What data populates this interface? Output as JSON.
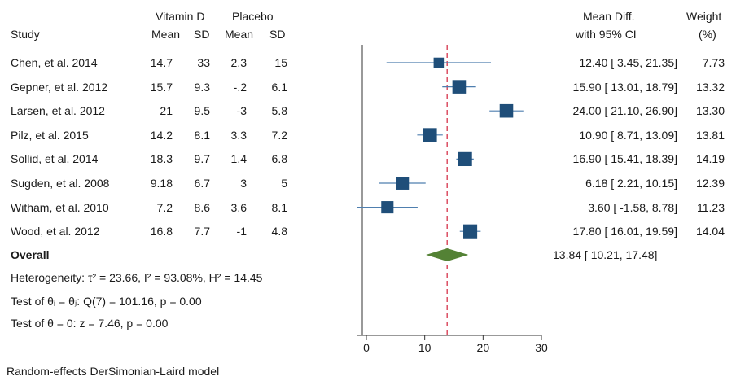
{
  "header": {
    "group1": "Vitamin D",
    "group2": "Placebo",
    "study": "Study",
    "mean": "Mean",
    "sd": "SD",
    "effect_line1": "Mean Diff.",
    "effect_line2": "with 95% CI",
    "weight_line1": "Weight",
    "weight_line2": "(%)"
  },
  "overall": {
    "label": "Overall",
    "ci_text": "13.84 [ 10.21,  17.48]"
  },
  "stats": {
    "heterogeneity": "Heterogeneity: τ² = 23.66, I² = 93.08%, H² = 14.45",
    "test_equal": "Test of θᵢ = θⱼ: Q(7) = 101.16, p = 0.00",
    "test_zero": "Test of θ = 0: z = 7.46, p = 0.00"
  },
  "footer": {
    "model": "Random-effects DerSimonian-Laird model"
  },
  "colors": {
    "square": "#1f4e79",
    "ci_line": "#4f7faf",
    "diamond": "#548235",
    "ref_line": "#d6334a"
  },
  "chart_data": {
    "type": "forest",
    "xlim": [
      -1.58,
      30
    ],
    "xticks": [
      "0",
      "10",
      "20",
      "30"
    ],
    "xtick_values": [
      0,
      10,
      20,
      30
    ],
    "reference_line": 13.84,
    "overall": {
      "estimate": 13.84,
      "lower": 10.21,
      "upper": 17.48
    },
    "studies": [
      {
        "name": "Chen, et al. 2014",
        "vd_mean": "14.7",
        "vd_sd": "33",
        "pl_mean": "2.3",
        "pl_sd": "15",
        "md": 12.4,
        "lower": 3.45,
        "upper": 21.35,
        "weight": 7.73,
        "ci_text": "12.40 [   3.45,  21.35]",
        "weight_text": "7.73"
      },
      {
        "name": "Gepner, et al. 2012",
        "vd_mean": "15.7",
        "vd_sd": "9.3",
        "pl_mean": "-.2",
        "pl_sd": "6.1",
        "md": 15.9,
        "lower": 13.01,
        "upper": 18.79,
        "weight": 13.32,
        "ci_text": "15.90 [ 13.01,  18.79]",
        "weight_text": "13.32"
      },
      {
        "name": "Larsen, et al. 2012",
        "vd_mean": "21",
        "vd_sd": "9.5",
        "pl_mean": "-3",
        "pl_sd": "5.8",
        "md": 24.0,
        "lower": 21.1,
        "upper": 26.9,
        "weight": 13.3,
        "ci_text": "24.00 [ 21.10,  26.90]",
        "weight_text": "13.30"
      },
      {
        "name": "Pilz, et al. 2015",
        "vd_mean": "14.2",
        "vd_sd": "8.1",
        "pl_mean": "3.3",
        "pl_sd": "7.2",
        "md": 10.9,
        "lower": 8.71,
        "upper": 13.09,
        "weight": 13.81,
        "ci_text": "10.90 [   8.71,  13.09]",
        "weight_text": "13.81"
      },
      {
        "name": "Sollid, et al. 2014",
        "vd_mean": "18.3",
        "vd_sd": "9.7",
        "pl_mean": "1.4",
        "pl_sd": "6.8",
        "md": 16.9,
        "lower": 15.41,
        "upper": 18.39,
        "weight": 14.19,
        "ci_text": "16.90 [ 15.41,  18.39]",
        "weight_text": "14.19"
      },
      {
        "name": "Sugden, et al. 2008",
        "vd_mean": "9.18",
        "vd_sd": "6.7",
        "pl_mean": "3",
        "pl_sd": "5",
        "md": 6.18,
        "lower": 2.21,
        "upper": 10.15,
        "weight": 12.39,
        "ci_text": "6.18 [   2.21,  10.15]",
        "weight_text": "12.39"
      },
      {
        "name": "Witham, et al. 2010",
        "vd_mean": "7.2",
        "vd_sd": "8.6",
        "pl_mean": "3.6",
        "pl_sd": "8.1",
        "md": 3.6,
        "lower": -1.58,
        "upper": 8.78,
        "weight": 11.23,
        "ci_text": "3.60 [  -1.58,    8.78]",
        "weight_text": "11.23"
      },
      {
        "name": "Wood, et al. 2012",
        "vd_mean": "16.8",
        "vd_sd": "7.7",
        "pl_mean": "-1",
        "pl_sd": "4.8",
        "md": 17.8,
        "lower": 16.01,
        "upper": 19.59,
        "weight": 14.04,
        "ci_text": "17.80 [ 16.01,  19.59]",
        "weight_text": "14.04"
      }
    ]
  }
}
